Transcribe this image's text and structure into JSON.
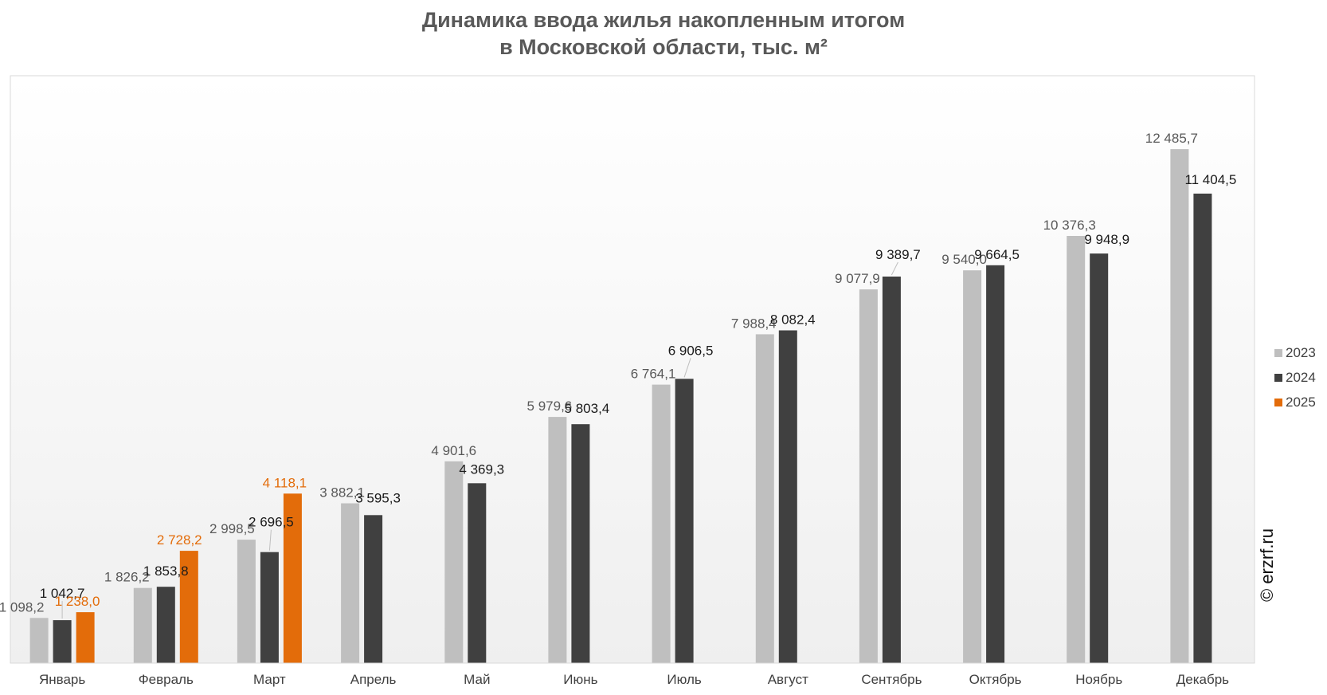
{
  "title_line1": "Динамика ввода жилья накопленным итогом",
  "title_line2": "в Московской области, тыс. м²",
  "watermark": "© erzrf.ru",
  "chart_data": {
    "type": "bar",
    "title": "Динамика ввода жилья накопленным итогом в Московской области, тыс. м²",
    "categories": [
      "Январь",
      "Февраль",
      "Март",
      "Апрель",
      "Май",
      "Июнь",
      "Июль",
      "Август",
      "Сентябрь",
      "Октябрь",
      "Ноябрь",
      "Декабрь"
    ],
    "series": [
      {
        "name": "2023",
        "color": "#bfbfbf",
        "label_color": "#595959",
        "values": [
          1098.2,
          1826.2,
          2998.5,
          3882.1,
          4901.6,
          5979.6,
          6764.1,
          7988.4,
          9077.9,
          9540.0,
          10376.3,
          12485.7
        ],
        "labels": [
          "1 098,2",
          "1 826,2",
          "2 998,5",
          "3 882,1",
          "4 901,6",
          "5 979,6",
          "6 764,1",
          "7 988,4",
          "9 077,9",
          "9 540,0",
          "10 376,3",
          "12 485,7"
        ]
      },
      {
        "name": "2024",
        "color": "#404040",
        "label_color": "#1a1a1a",
        "values": [
          1042.7,
          1853.8,
          2696.5,
          3595.3,
          4369.3,
          5803.4,
          6906.5,
          8082.4,
          9389.7,
          9664.5,
          9948.9,
          11404.5
        ],
        "labels": [
          "1 042,7",
          "1 853,8",
          "2 696,5",
          "3 595,3",
          "4 369,3",
          "5 803,4",
          "6 906,5",
          "8 082,4",
          "9 389,7",
          "9 664,5",
          "9 948,9",
          "11 404,5"
        ]
      },
      {
        "name": "2025",
        "color": "#e36c0a",
        "label_color": "#e36c0a",
        "values": [
          1238.0,
          2728.2,
          4118.1,
          null,
          null,
          null,
          null,
          null,
          null,
          null,
          null,
          null
        ],
        "labels": [
          "1 238,0",
          "2 728,2",
          "4 118,1",
          "",
          "",
          "",
          "",
          "",
          "",
          "",
          "",
          ""
        ]
      }
    ],
    "ylim": [
      0,
      14000
    ],
    "legend_position": "right",
    "grid": false
  }
}
